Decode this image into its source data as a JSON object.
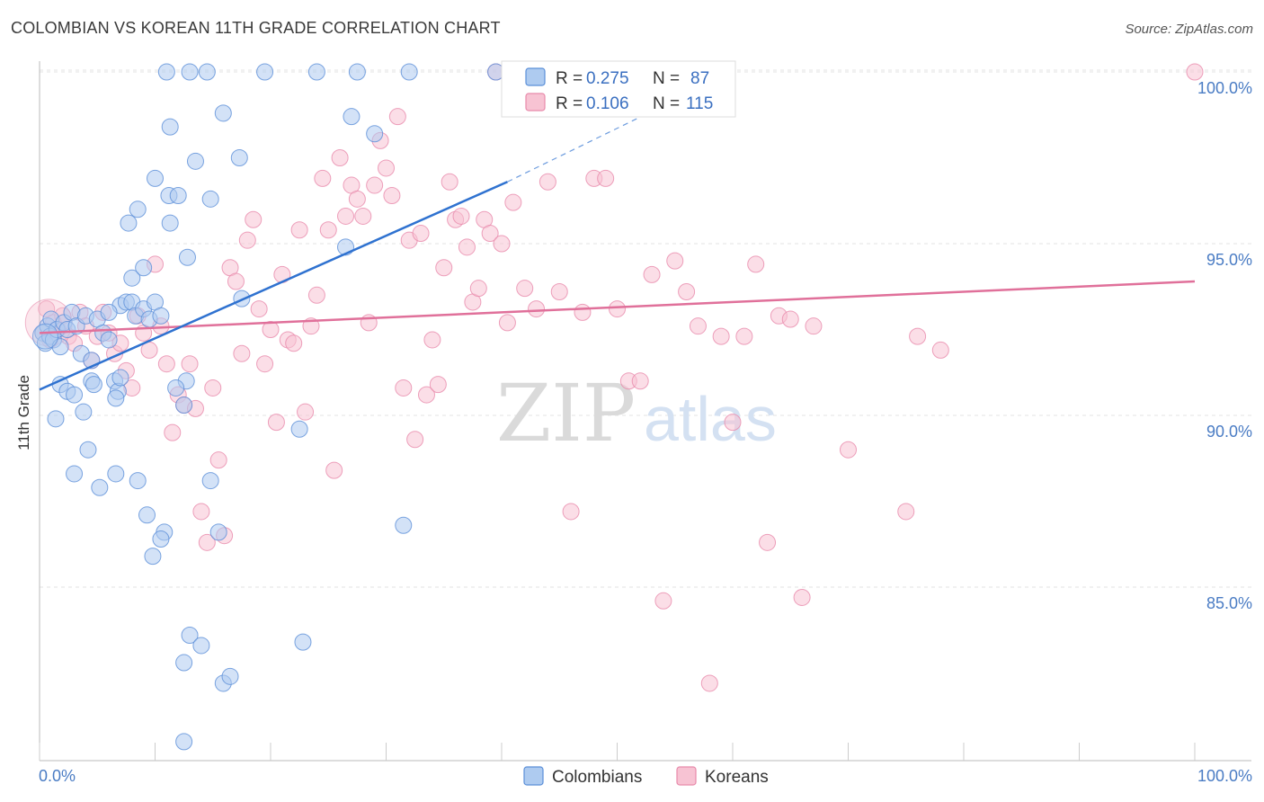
{
  "title": "COLOMBIAN VS KOREAN 11TH GRADE CORRELATION CHART",
  "source": "Source: ZipAtlas.com",
  "watermark": {
    "zip": "ZIP",
    "atlas": "atlas"
  },
  "colors": {
    "colombians_fill": "#aecbf0",
    "colombians_stroke": "#5b8fd8",
    "colombians_line": "#2f72d0",
    "koreans_fill": "#f7c3d3",
    "koreans_stroke": "#e88aab",
    "koreans_line": "#e0709a",
    "grid": "#e3e3e3",
    "axis_text": "#4a7cc4"
  },
  "legend": {
    "rows": [
      {
        "r_label": "R =",
        "r_value": "0.275",
        "n_label": "N =",
        "n_value": "87"
      },
      {
        "r_label": "R =",
        "r_value": "0.106",
        "n_label": "N =",
        "n_value": "115"
      }
    ]
  },
  "bottom_legend": [
    "Colombians",
    "Koreans"
  ],
  "chart_data": {
    "type": "scatter",
    "title": "COLOMBIAN VS KOREAN 11TH GRADE CORRELATION CHART",
    "xlabel": "",
    "ylabel": "11th Grade",
    "xlim": [
      0,
      100
    ],
    "ylim": [
      80.3,
      100.5
    ],
    "x_tick_labels": [
      "0.0%",
      "100.0%"
    ],
    "y_ticks": [
      85,
      90,
      95,
      100
    ],
    "y_tick_labels": [
      "85.0%",
      "90.0%",
      "95.0%",
      "100.0%"
    ],
    "grid": true,
    "legend_position": "top-center",
    "series": [
      {
        "name": "Colombians",
        "r": 0.275,
        "n": 87,
        "trend": {
          "x0": 0,
          "y0": 90.75,
          "x1": 40.5,
          "y1": 96.8,
          "dashed_to_x": 60,
          "dashed_to_y": 100
        },
        "points": [
          [
            0.3,
            92.4
          ],
          [
            0.5,
            92.1
          ],
          [
            0.7,
            92.6
          ],
          [
            0.9,
            92.3
          ],
          [
            1.0,
            92.8
          ],
          [
            1.2,
            92.2
          ],
          [
            1.5,
            92.5
          ],
          [
            1.8,
            92.0
          ],
          [
            2.1,
            92.7
          ],
          [
            2.4,
            92.5
          ],
          [
            2.8,
            93.0
          ],
          [
            3.2,
            92.6
          ],
          [
            3.6,
            91.8
          ],
          [
            4.0,
            92.9
          ],
          [
            4.5,
            91.6
          ],
          [
            5.0,
            92.8
          ],
          [
            5.5,
            92.4
          ],
          [
            6.0,
            92.2
          ],
          [
            1.4,
            89.9
          ],
          [
            1.8,
            90.9
          ],
          [
            2.4,
            90.7
          ],
          [
            3.0,
            90.6
          ],
          [
            3.8,
            90.1
          ],
          [
            4.5,
            91.0
          ],
          [
            4.7,
            90.9
          ],
          [
            6.5,
            91.0
          ],
          [
            6.8,
            90.7
          ],
          [
            6.6,
            90.5
          ],
          [
            7.0,
            93.2
          ],
          [
            7.5,
            93.3
          ],
          [
            8.0,
            93.3
          ],
          [
            8.3,
            92.9
          ],
          [
            9.0,
            93.1
          ],
          [
            9.5,
            92.8
          ],
          [
            10.0,
            93.3
          ],
          [
            8.0,
            94.0
          ],
          [
            9.0,
            94.3
          ],
          [
            10.5,
            92.9
          ],
          [
            4.2,
            89.0
          ],
          [
            3.0,
            88.3
          ],
          [
            5.2,
            87.9
          ],
          [
            6.6,
            88.3
          ],
          [
            8.5,
            88.1
          ],
          [
            9.3,
            87.1
          ],
          [
            10.8,
            86.6
          ],
          [
            10.5,
            86.4
          ],
          [
            9.8,
            85.9
          ],
          [
            12.7,
            91.0
          ],
          [
            12.5,
            90.3
          ],
          [
            11.8,
            90.8
          ],
          [
            12.8,
            94.6
          ],
          [
            11.3,
            95.6
          ],
          [
            10.0,
            96.9
          ],
          [
            11.2,
            96.4
          ],
          [
            12.0,
            96.4
          ],
          [
            13.5,
            97.4
          ],
          [
            14.8,
            96.3
          ],
          [
            11.3,
            98.4
          ],
          [
            7.7,
            95.6
          ],
          [
            8.5,
            96.0
          ],
          [
            15.9,
            98.8
          ],
          [
            17.3,
            97.5
          ],
          [
            17.5,
            93.4
          ],
          [
            14.8,
            88.1
          ],
          [
            15.5,
            86.6
          ],
          [
            12.5,
            82.8
          ],
          [
            13.0,
            83.6
          ],
          [
            14.0,
            83.3
          ],
          [
            15.9,
            82.2
          ],
          [
            16.5,
            82.4
          ],
          [
            11.0,
            100.0
          ],
          [
            13.0,
            100.0
          ],
          [
            14.5,
            100.0
          ],
          [
            19.5,
            100.0
          ],
          [
            24.0,
            100.0
          ],
          [
            27.5,
            100.0
          ],
          [
            32.0,
            100.0
          ],
          [
            39.5,
            100.0
          ],
          [
            26.5,
            94.9
          ],
          [
            27.0,
            98.7
          ],
          [
            29.0,
            98.2
          ],
          [
            22.5,
            89.6
          ],
          [
            22.8,
            83.4
          ],
          [
            31.5,
            86.8
          ],
          [
            12.5,
            80.5
          ],
          [
            6.0,
            93.0
          ],
          [
            7.0,
            91.1
          ]
        ]
      },
      {
        "name": "Koreans",
        "r": 0.106,
        "n": 115,
        "trend": {
          "x0": 0,
          "y0": 92.4,
          "x1": 100,
          "y1": 93.9
        },
        "points": [
          [
            0.3,
            92.4
          ],
          [
            0.6,
            93.1
          ],
          [
            0.9,
            92.2
          ],
          [
            1.2,
            92.7
          ],
          [
            1.6,
            92.5
          ],
          [
            2.0,
            92.9
          ],
          [
            2.5,
            92.3
          ],
          [
            3.0,
            92.1
          ],
          [
            3.5,
            93.0
          ],
          [
            4.0,
            92.6
          ],
          [
            4.5,
            91.6
          ],
          [
            5.0,
            92.3
          ],
          [
            5.5,
            93.0
          ],
          [
            6.0,
            92.4
          ],
          [
            6.5,
            91.8
          ],
          [
            7.0,
            92.1
          ],
          [
            7.5,
            91.3
          ],
          [
            8.0,
            90.8
          ],
          [
            8.5,
            92.9
          ],
          [
            9.0,
            92.4
          ],
          [
            9.5,
            91.9
          ],
          [
            10.0,
            94.4
          ],
          [
            10.5,
            92.6
          ],
          [
            11.0,
            91.5
          ],
          [
            11.5,
            89.5
          ],
          [
            12.0,
            90.6
          ],
          [
            12.5,
            90.3
          ],
          [
            13.0,
            91.5
          ],
          [
            13.5,
            90.2
          ],
          [
            14.0,
            87.2
          ],
          [
            14.5,
            86.3
          ],
          [
            15.0,
            90.8
          ],
          [
            15.5,
            88.7
          ],
          [
            16.0,
            86.5
          ],
          [
            16.5,
            94.3
          ],
          [
            17.0,
            93.9
          ],
          [
            17.5,
            91.8
          ],
          [
            18.0,
            95.1
          ],
          [
            18.5,
            95.7
          ],
          [
            19.0,
            93.1
          ],
          [
            19.5,
            91.5
          ],
          [
            20.0,
            92.5
          ],
          [
            20.5,
            89.8
          ],
          [
            21.0,
            94.1
          ],
          [
            21.5,
            92.2
          ],
          [
            22.0,
            92.1
          ],
          [
            22.5,
            95.4
          ],
          [
            23.0,
            90.1
          ],
          [
            23.5,
            92.6
          ],
          [
            24.0,
            93.5
          ],
          [
            24.5,
            96.9
          ],
          [
            25.0,
            95.4
          ],
          [
            25.5,
            88.4
          ],
          [
            26.0,
            97.5
          ],
          [
            26.5,
            95.8
          ],
          [
            27.0,
            96.7
          ],
          [
            27.5,
            96.3
          ],
          [
            28.0,
            95.8
          ],
          [
            28.5,
            92.7
          ],
          [
            29.0,
            96.7
          ],
          [
            29.5,
            98.0
          ],
          [
            30.0,
            97.2
          ],
          [
            30.5,
            96.4
          ],
          [
            31.0,
            98.7
          ],
          [
            31.5,
            90.8
          ],
          [
            32.0,
            95.1
          ],
          [
            32.5,
            89.3
          ],
          [
            33.0,
            95.3
          ],
          [
            33.5,
            90.6
          ],
          [
            34.0,
            92.2
          ],
          [
            34.5,
            90.9
          ],
          [
            35.0,
            94.3
          ],
          [
            35.5,
            96.8
          ],
          [
            36.0,
            95.7
          ],
          [
            36.5,
            95.8
          ],
          [
            37.0,
            94.9
          ],
          [
            37.5,
            93.3
          ],
          [
            38.0,
            93.7
          ],
          [
            38.5,
            95.7
          ],
          [
            39.0,
            95.3
          ],
          [
            39.5,
            100.0
          ],
          [
            40.0,
            95.0
          ],
          [
            40.5,
            92.7
          ],
          [
            41.0,
            96.2
          ],
          [
            42.0,
            93.7
          ],
          [
            43.0,
            93.1
          ],
          [
            44.0,
            96.8
          ],
          [
            45.0,
            93.6
          ],
          [
            46.0,
            87.2
          ],
          [
            47.0,
            93.0
          ],
          [
            48.0,
            96.9
          ],
          [
            49.0,
            96.9
          ],
          [
            50.0,
            93.1
          ],
          [
            51.0,
            91.0
          ],
          [
            52.0,
            91.0
          ],
          [
            53.0,
            94.1
          ],
          [
            54.0,
            84.6
          ],
          [
            55.0,
            94.5
          ],
          [
            56.0,
            93.6
          ],
          [
            57.0,
            92.6
          ],
          [
            58.0,
            82.2
          ],
          [
            59.0,
            92.3
          ],
          [
            60.0,
            89.8
          ],
          [
            61.0,
            92.3
          ],
          [
            62.0,
            94.4
          ],
          [
            63.0,
            86.3
          ],
          [
            64.0,
            92.9
          ],
          [
            65.0,
            92.8
          ],
          [
            66.0,
            84.7
          ],
          [
            67.0,
            92.6
          ],
          [
            70.0,
            89.0
          ],
          [
            75.0,
            87.2
          ],
          [
            76.0,
            92.3
          ],
          [
            78.0,
            91.9
          ],
          [
            100.0,
            100.0
          ]
        ]
      }
    ]
  }
}
